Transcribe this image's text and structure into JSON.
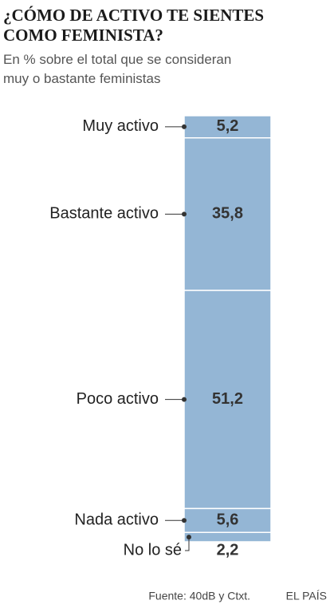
{
  "chart_data": {
    "type": "stacked-bar",
    "title": [
      "¿CÓMO DE ACTIVO TE SIENTES",
      "COMO FEMINISTA?"
    ],
    "subtitle": [
      "En % sobre el total que se consideran",
      "muy o bastante feministas"
    ],
    "categories": [
      "Muy activo",
      "Bastante activo",
      "Poco activo",
      "Nada activo",
      "No lo sé"
    ],
    "values": [
      5.2,
      35.8,
      51.2,
      5.6,
      2.2
    ],
    "value_labels": [
      "5,2",
      "35,8",
      "51,2",
      "5,6",
      "2,2"
    ],
    "color": "#94b6d5",
    "source": "Fuente: 40dB y Ctxt.",
    "credit": "EL PAÍS"
  }
}
